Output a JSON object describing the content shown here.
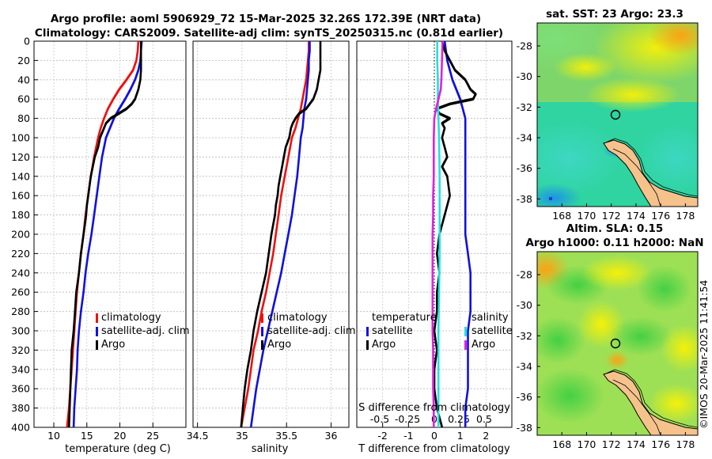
{
  "title_line1": "Argo profile: aoml 5906929_72 15-Mar-2025 32.26S 172.39E (NRT data)",
  "title_line2": "Climatology: CARS2009. Satellite-adj clim: synTS_20250315.nc (0.81d earlier)",
  "map1_title": "sat. SST: 23 Argo: 23.3",
  "map2_title_line1": "Altim. SLA: 0.15",
  "map2_title_line2": "Argo h1000: 0.11 h2000: NaN",
  "side_stamp": "©IMOS 20-Mar-2025 11:41:54",
  "colors": {
    "climatology": "#ee1111",
    "satellite": "#1111dd",
    "argo": "#000000",
    "sat_salinity": "#22e0e0",
    "clim_salinity": "#e020e0"
  },
  "chart_data": [
    {
      "type": "line",
      "name": "temperature-profile",
      "xlabel": "temperature (deg C)",
      "ylabel": "",
      "xlim": [
        7,
        30
      ],
      "ylim": [
        0,
        400
      ],
      "y_reversed": true,
      "xticks": [
        10,
        15,
        20,
        25
      ],
      "yticks": [
        0,
        20,
        40,
        60,
        80,
        100,
        120,
        140,
        160,
        180,
        200,
        220,
        240,
        260,
        280,
        300,
        320,
        340,
        360,
        380,
        400
      ],
      "legend": [
        "climatology",
        "satellite-adj. clim",
        "Argo"
      ],
      "legend_position": "lower-right",
      "series": [
        {
          "name": "climatology",
          "color_key": "climatology",
          "depth": [
            0,
            10,
            20,
            30,
            40,
            50,
            60,
            70,
            80,
            90,
            100,
            120,
            140,
            160,
            180,
            200,
            220,
            240,
            260,
            280,
            300,
            320,
            340,
            360,
            380,
            400
          ],
          "values": [
            22.8,
            22.7,
            22.5,
            22.0,
            21.0,
            19.9,
            19.0,
            18.2,
            17.6,
            17.1,
            16.7,
            16.1,
            15.6,
            15.2,
            14.8,
            14.5,
            14.1,
            13.8,
            13.5,
            13.3,
            13.1,
            12.9,
            12.7,
            12.5,
            12.3,
            12.0
          ]
        },
        {
          "name": "satellite-adj. clim",
          "color_key": "satellite",
          "depth": [
            0,
            10,
            20,
            30,
            40,
            50,
            60,
            70,
            80,
            90,
            100,
            120,
            140,
            160,
            180,
            200,
            220,
            240,
            260,
            280,
            300,
            320,
            340,
            360,
            380,
            400
          ],
          "values": [
            23.3,
            23.2,
            23.1,
            22.8,
            22.3,
            21.6,
            20.8,
            19.9,
            19.1,
            18.5,
            17.9,
            17.3,
            16.9,
            16.5,
            16.1,
            15.7,
            15.2,
            14.8,
            14.5,
            14.1,
            13.8,
            13.6,
            13.5,
            13.3,
            13.1,
            13.0
          ]
        },
        {
          "name": "Argo",
          "color_key": "argo",
          "depth": [
            0,
            10,
            20,
            30,
            40,
            50,
            60,
            65,
            70,
            75,
            80,
            85,
            90,
            100,
            110,
            120,
            130,
            140,
            150,
            160,
            170,
            180,
            190,
            200,
            220,
            240,
            260,
            280,
            300,
            320,
            340,
            360,
            380,
            400
          ],
          "values": [
            23.2,
            23.2,
            23.2,
            23.2,
            23.1,
            22.8,
            22.3,
            21.8,
            21.0,
            19.8,
            18.6,
            17.9,
            17.6,
            17.0,
            16.7,
            16.2,
            15.9,
            15.6,
            15.4,
            15.2,
            15.0,
            14.9,
            14.7,
            14.5,
            14.1,
            13.8,
            13.4,
            13.2,
            13.0,
            12.7,
            12.6,
            12.5,
            12.4,
            12.3
          ]
        }
      ]
    },
    {
      "type": "line",
      "name": "salinity-profile",
      "xlabel": "salinity",
      "xlim": [
        34.45,
        36.2
      ],
      "ylim": [
        0,
        400
      ],
      "y_reversed": true,
      "xticks": [
        34.5,
        35,
        35.5,
        36
      ],
      "xtick_labels": [
        "34.5",
        "35",
        "35.5",
        "36"
      ],
      "legend": [
        "climatology",
        "satellite-adj. clim",
        "Argo"
      ],
      "legend_position": "lower-right",
      "series": [
        {
          "name": "climatology",
          "color_key": "climatology",
          "depth": [
            0,
            10,
            20,
            30,
            40,
            50,
            60,
            70,
            80,
            90,
            100,
            120,
            140,
            160,
            180,
            200,
            220,
            240,
            260,
            280,
            300,
            320,
            340,
            360,
            380,
            400
          ],
          "values": [
            35.75,
            35.75,
            35.74,
            35.73,
            35.72,
            35.7,
            35.68,
            35.66,
            35.63,
            35.6,
            35.56,
            35.52,
            35.48,
            35.44,
            35.41,
            35.38,
            35.35,
            35.31,
            35.27,
            35.22,
            35.18,
            35.13,
            35.1,
            35.07,
            35.03,
            34.99
          ]
        },
        {
          "name": "satellite-adj. clim",
          "color_key": "satellite",
          "depth": [
            0,
            10,
            20,
            30,
            40,
            50,
            60,
            70,
            80,
            90,
            100,
            120,
            140,
            160,
            180,
            200,
            220,
            240,
            260,
            280,
            300,
            320,
            340,
            360,
            380,
            400
          ],
          "values": [
            35.76,
            35.76,
            35.75,
            35.75,
            35.74,
            35.73,
            35.72,
            35.7,
            35.69,
            35.68,
            35.66,
            35.64,
            35.62,
            35.59,
            35.56,
            35.52,
            35.48,
            35.44,
            35.39,
            35.34,
            35.29,
            35.24,
            35.2,
            35.16,
            35.13,
            35.1
          ]
        },
        {
          "name": "Argo",
          "color_key": "argo",
          "depth": [
            0,
            10,
            20,
            30,
            40,
            50,
            60,
            70,
            75,
            80,
            85,
            90,
            100,
            110,
            120,
            130,
            140,
            150,
            160,
            170,
            180,
            190,
            200,
            220,
            240,
            260,
            280,
            300,
            320,
            340,
            360,
            380,
            400
          ],
          "values": [
            35.88,
            35.88,
            35.88,
            35.88,
            35.86,
            35.84,
            35.8,
            35.72,
            35.64,
            35.6,
            35.57,
            35.55,
            35.53,
            35.49,
            35.47,
            35.45,
            35.43,
            35.41,
            35.4,
            35.38,
            35.37,
            35.35,
            35.33,
            35.3,
            35.27,
            35.22,
            35.17,
            35.13,
            35.1,
            35.06,
            35.03,
            35.01,
            34.99
          ]
        }
      ]
    },
    {
      "type": "line",
      "name": "difference-profile",
      "xlabel": "T difference from climatology",
      "xlabel_top": "S difference from climatology",
      "xlim": [
        -3,
        3
      ],
      "ylim": [
        0,
        400
      ],
      "y_reversed": true,
      "xticks": [
        -2,
        -1,
        0,
        1,
        2
      ],
      "xticks_top": [
        -0.5,
        -0.25,
        0,
        0.25,
        0.5
      ],
      "xtick_labels_top": [
        "-0.5",
        "-0.25",
        "0",
        "0.25",
        "0.5"
      ],
      "zero_line": "dotted",
      "legend_left_title": "temperature",
      "legend_left": [
        "satellite",
        "Argo"
      ],
      "legend_right_title": "salinity",
      "legend_right": [
        "satellite",
        "Argo"
      ],
      "series": [
        {
          "name": "T satellite",
          "color_key": "satellite",
          "depth": [
            0,
            20,
            40,
            60,
            80,
            100,
            120,
            140,
            160,
            180,
            200,
            220,
            240,
            260,
            280,
            300,
            320,
            340,
            360,
            380,
            400
          ],
          "values": [
            0.4,
            0.5,
            0.7,
            1.0,
            1.2,
            1.2,
            1.2,
            1.2,
            1.2,
            1.2,
            1.2,
            1.3,
            1.4,
            1.4,
            1.4,
            1.3,
            1.3,
            1.3,
            1.3,
            1.2,
            1.2
          ]
        },
        {
          "name": "T Argo",
          "color_key": "argo",
          "depth": [
            0,
            10,
            20,
            30,
            40,
            45,
            50,
            55,
            60,
            65,
            70,
            75,
            80,
            85,
            90,
            100,
            110,
            120,
            130,
            140,
            160,
            180,
            200,
            220,
            240,
            260,
            280,
            300,
            320,
            340,
            360,
            380,
            400
          ],
          "values": [
            0.3,
            0.4,
            0.6,
            0.8,
            1.2,
            1.3,
            1.4,
            1.6,
            1.5,
            0.6,
            0.1,
            0.2,
            0.6,
            0.3,
            0.4,
            0.3,
            0.4,
            0.5,
            0.3,
            0.5,
            0.6,
            0.4,
            0.2,
            0.1,
            0.2,
            0.1,
            0.1,
            0.0,
            0.1,
            0.0,
            0.0,
            0.1,
            0.3
          ]
        },
        {
          "name": "S satellite",
          "color_key": "sat_salinity",
          "depth": [
            0,
            20,
            40,
            60,
            80,
            100,
            140,
            180,
            220,
            260,
            300,
            340,
            380,
            400
          ],
          "values": [
            0.05,
            0.05,
            0.06,
            0.06,
            0.07,
            0.08,
            0.09,
            0.09,
            0.09,
            0.08,
            0.07,
            0.07,
            0.07,
            0.07
          ]
        },
        {
          "name": "S Argo",
          "color_key": "clim_salinity",
          "depth": [
            0,
            20,
            40,
            50,
            60,
            70,
            80,
            100,
            120,
            140,
            160,
            180,
            200,
            220,
            240,
            260,
            280,
            300,
            320,
            340,
            360,
            380,
            400
          ],
          "values": [
            0.14,
            0.13,
            0.12,
            0.11,
            0.07,
            0.03,
            0.0,
            -0.01,
            -0.01,
            -0.01,
            -0.02,
            -0.02,
            -0.03,
            -0.03,
            -0.03,
            -0.03,
            -0.03,
            -0.03,
            -0.02,
            -0.02,
            -0.02,
            -0.01,
            -0.01
          ]
        }
      ]
    },
    {
      "type": "heatmap",
      "name": "sst-map",
      "title": "sat. SST: 23 Argo: 23.3",
      "x_ticks": [
        168,
        170,
        172,
        174,
        176,
        178
      ],
      "y_ticks": [
        -28,
        -30,
        -32,
        -34,
        -36,
        -38
      ],
      "xlim": [
        166,
        179
      ],
      "ylim": [
        -38.5,
        -26.5
      ],
      "argo_position": [
        172.39,
        -32.26
      ]
    },
    {
      "type": "heatmap",
      "name": "sla-map",
      "title": "Altim. SLA: 0.15 / Argo h1000: 0.11 h2000: NaN",
      "x_ticks": [
        168,
        170,
        172,
        174,
        176,
        178
      ],
      "y_ticks": [
        -28,
        -30,
        -32,
        -34,
        -36,
        -38
      ],
      "xlim": [
        166,
        179
      ],
      "ylim": [
        -38.5,
        -26.5
      ],
      "argo_position": [
        172.39,
        -32.26
      ]
    }
  ]
}
